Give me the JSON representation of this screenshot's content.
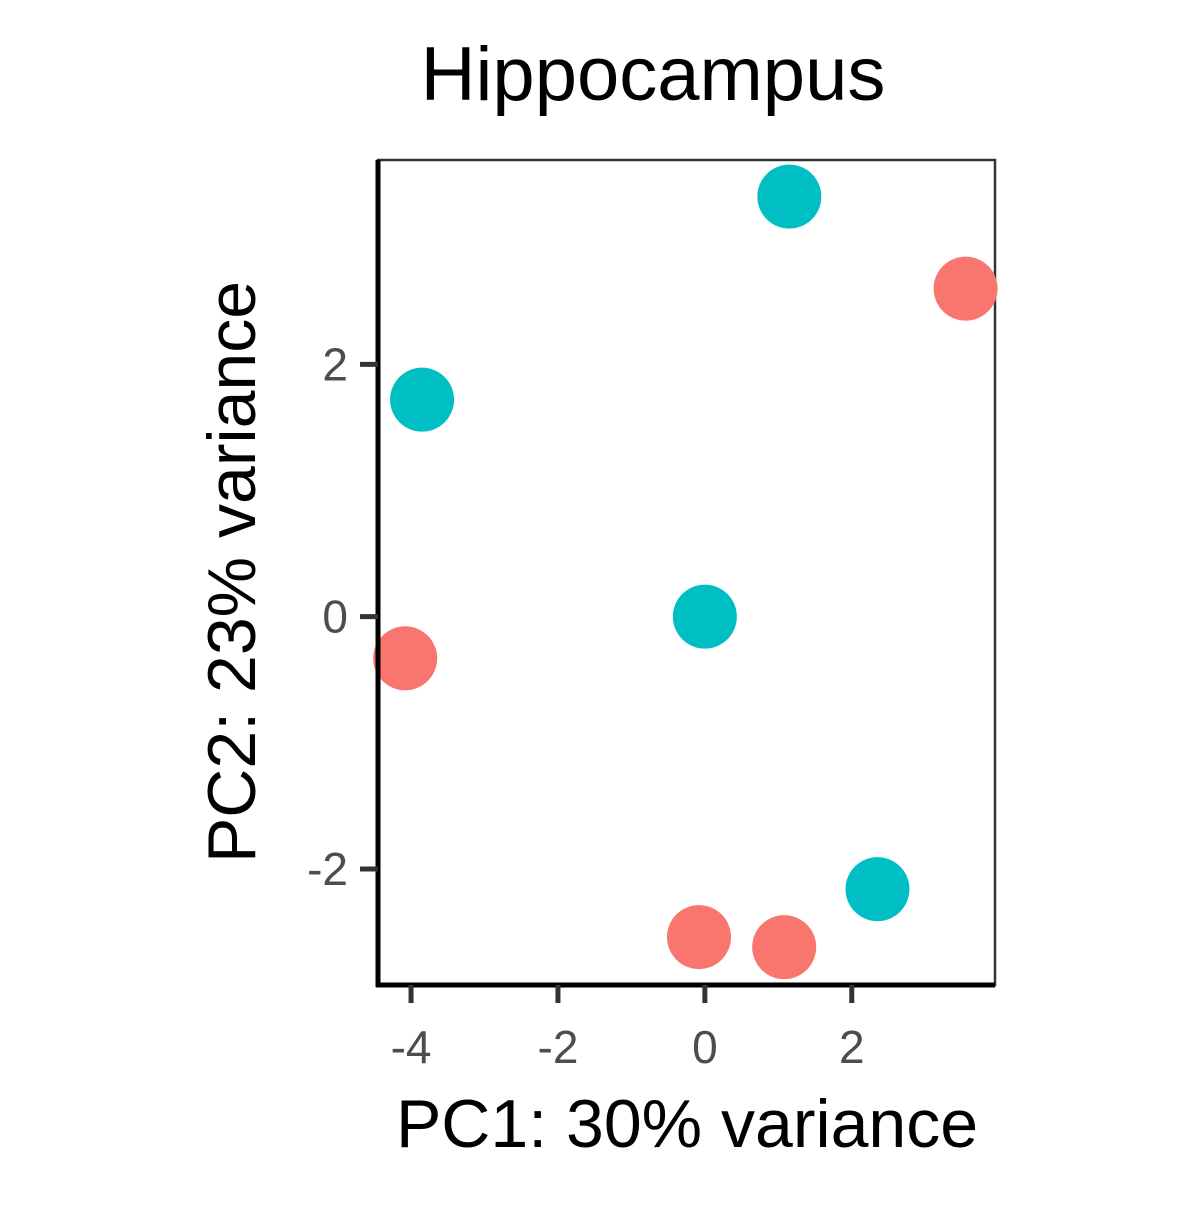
{
  "chart_data": {
    "type": "scatter",
    "title": "Hippocampus",
    "xlabel": "PC1: 30% variance",
    "ylabel": "PC2: 23% variance",
    "xlim": [
      -4.45,
      3.95
    ],
    "ylim": [
      -2.92,
      3.62
    ],
    "xticks": [
      {
        "value": -4,
        "label": "-4"
      },
      {
        "value": -2,
        "label": "-2"
      },
      {
        "value": 0,
        "label": "0"
      },
      {
        "value": 2,
        "label": "2"
      }
    ],
    "yticks": [
      {
        "value": -2,
        "label": "-2"
      },
      {
        "value": 0,
        "label": "0"
      },
      {
        "value": 2,
        "label": "2"
      }
    ],
    "grid": false,
    "legend": "none",
    "series": [
      {
        "color": "#F8766D",
        "points": [
          {
            "x": -4.08,
            "y": -0.33
          },
          {
            "x": -0.08,
            "y": -2.54
          },
          {
            "x": 1.08,
            "y": -2.62
          },
          {
            "x": 3.55,
            "y": 2.6
          }
        ]
      },
      {
        "color": "#00BFC4",
        "points": [
          {
            "x": -3.85,
            "y": 1.72
          },
          {
            "x": 0.0,
            "y": 0.0
          },
          {
            "x": 1.15,
            "y": 3.33
          },
          {
            "x": 2.35,
            "y": -2.16
          }
        ]
      }
    ]
  }
}
